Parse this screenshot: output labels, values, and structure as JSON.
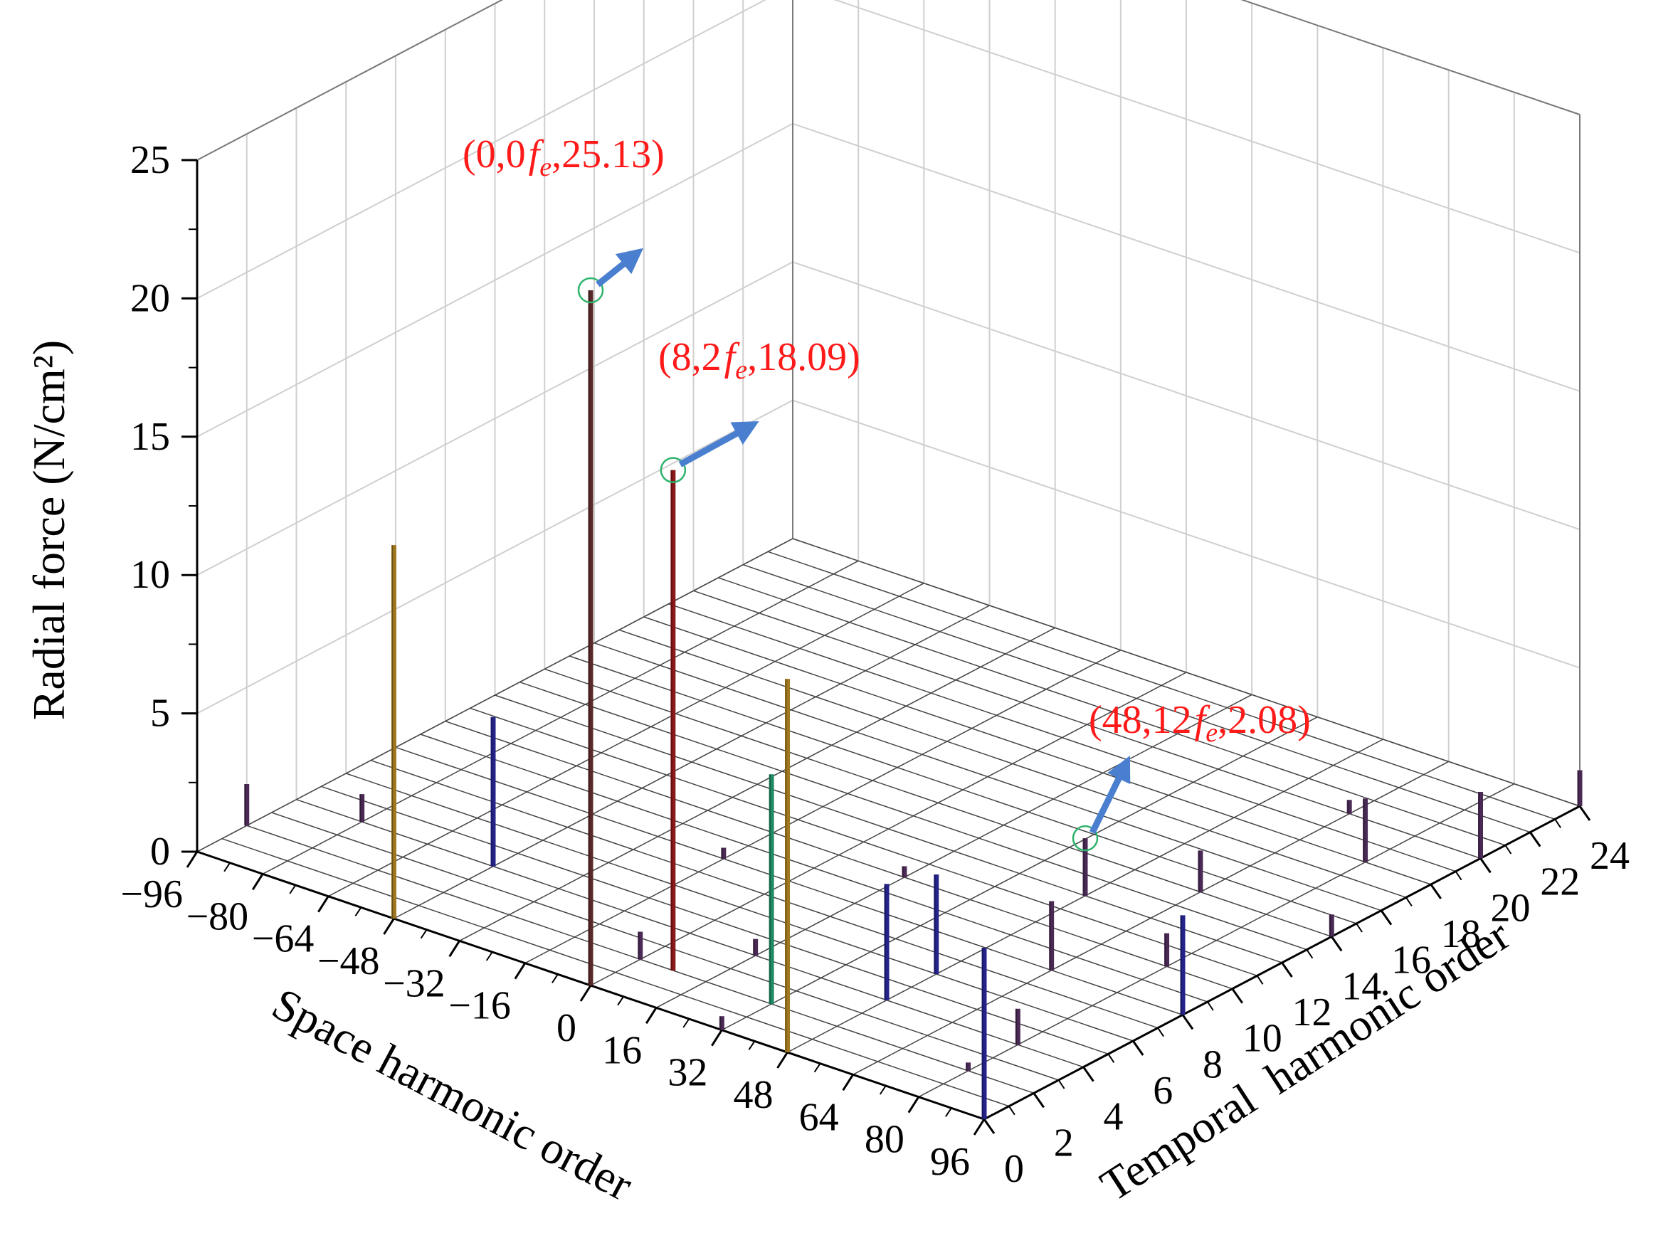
{
  "chart_data": {
    "type": "bar3d",
    "xlabel": "Space harmonic order",
    "ylabel": "Temporal  harmonic order",
    "zlabel": "Radial force (N/cm²)",
    "xlim": [
      -96,
      96
    ],
    "ylim": [
      0,
      24
    ],
    "zlim": [
      0,
      25
    ],
    "x_ticks": [
      "−96",
      "−80",
      "−64",
      "−48",
      "−32",
      "−16",
      "0",
      "16",
      "32",
      "48",
      "64",
      "80",
      "96"
    ],
    "y_ticks": [
      "0",
      "2",
      "4",
      "6",
      "8",
      "10",
      "12",
      "14",
      "16",
      "18",
      "20",
      "22",
      "24"
    ],
    "z_ticks": [
      "0",
      "5",
      "10",
      "15",
      "20",
      "25"
    ],
    "grid": true,
    "annotations": [
      {
        "x": 0,
        "y": 0,
        "z": 25.13,
        "label_before": "(0,0",
        "label_f": "f",
        "label_sub": "e",
        "label_after": ",25.13)"
      },
      {
        "x": 8,
        "y": 2,
        "z": 18.09,
        "label_before": "(8,2",
        "label_f": "f",
        "label_sub": "e",
        "label_after": ",18.09)"
      },
      {
        "x": 48,
        "y": 12,
        "z": 2.08,
        "label_before": "(48,12",
        "label_f": "f",
        "label_sub": "e",
        "label_after": ",2.08)"
      }
    ],
    "bars": [
      {
        "x": 0,
        "y": 0,
        "z": 25.13,
        "color": "#5a2a2a"
      },
      {
        "x": 8,
        "y": 2,
        "z": 18.09,
        "color": "#8b1a1a"
      },
      {
        "x": -48,
        "y": 0,
        "z": 13.5,
        "color": "#a07820"
      },
      {
        "x": 48,
        "y": 0,
        "z": 13.5,
        "color": "#a07820"
      },
      {
        "x": 32,
        "y": 2,
        "z": 8.3,
        "color": "#1f8a63"
      },
      {
        "x": -48,
        "y": 4,
        "z": 5.4,
        "color": "#25238a"
      },
      {
        "x": 96,
        "y": 0,
        "z": 6.2,
        "color": "#25238a"
      },
      {
        "x": 48,
        "y": 4,
        "z": 4.2,
        "color": "#25238a"
      },
      {
        "x": 48,
        "y": 6,
        "z": 3.6,
        "color": "#25238a"
      },
      {
        "x": 96,
        "y": 8,
        "z": 3.6,
        "color": "#25238a"
      },
      {
        "x": 48,
        "y": 12,
        "z": 2.08,
        "color": "#4a2a55"
      },
      {
        "x": -96,
        "y": 2,
        "z": 1.5,
        "color": "#4a2a55"
      },
      {
        "x": -80,
        "y": 4,
        "z": 1.0,
        "color": "#4a2a55"
      },
      {
        "x": 64,
        "y": 8,
        "z": 2.5,
        "color": "#4a2a55"
      },
      {
        "x": 80,
        "y": 4,
        "z": 1.3,
        "color": "#4a2a55"
      },
      {
        "x": 64,
        "y": 14,
        "z": 1.5,
        "color": "#4a2a55"
      },
      {
        "x": 80,
        "y": 18,
        "z": 2.3,
        "color": "#4a2a55"
      },
      {
        "x": 96,
        "y": 24,
        "z": 1.3,
        "color": "#4a2a55"
      },
      {
        "x": 80,
        "y": 10,
        "z": 1.2,
        "color": "#4a2a55"
      },
      {
        "x": 96,
        "y": 14,
        "z": 0.8,
        "color": "#4a2a55"
      },
      {
        "x": 96,
        "y": 20,
        "z": 2.4,
        "color": "#4a2a55"
      },
      {
        "x": 32,
        "y": 0,
        "z": 0.5,
        "color": "#4a2a55"
      },
      {
        "x": 0,
        "y": 2,
        "z": 1.0,
        "color": "#4a2a55"
      },
      {
        "x": -16,
        "y": 8,
        "z": 0.4,
        "color": "#4a2a55"
      },
      {
        "x": 16,
        "y": 10,
        "z": 0.4,
        "color": "#4a2a55"
      },
      {
        "x": 64,
        "y": 20,
        "z": 0.5,
        "color": "#4a2a55"
      },
      {
        "x": 16,
        "y": 4,
        "z": 0.6,
        "color": "#4a2a55"
      },
      {
        "x": 80,
        "y": 2,
        "z": 0.3,
        "color": "#4a2a55"
      }
    ]
  }
}
